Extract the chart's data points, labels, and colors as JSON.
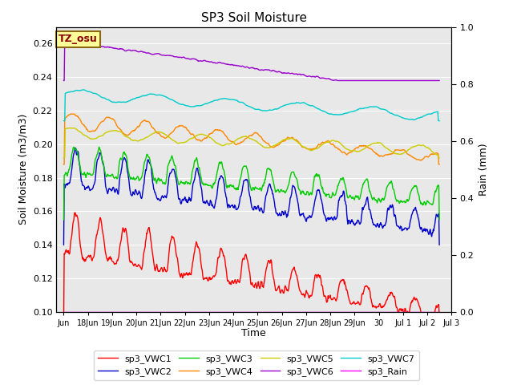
{
  "title": "SP3 Soil Moisture",
  "xlabel": "Time",
  "ylabel_left": "Soil Moisture (m3/m3)",
  "ylabel_right": "Rain (mm)",
  "annotation": "TZ_osu",
  "xlim_days": [
    -0.3,
    16.0
  ],
  "ylim_left": [
    0.1,
    0.27
  ],
  "ylim_right": [
    0.0,
    1.0
  ],
  "background_color": "#e8e8e8",
  "series": {
    "sp3_VWC1": {
      "color": "#ff0000",
      "lw": 1.0
    },
    "sp3_VWC2": {
      "color": "#0000cc",
      "lw": 1.0
    },
    "sp3_VWC3": {
      "color": "#00cc00",
      "lw": 1.0
    },
    "sp3_VWC4": {
      "color": "#ff8800",
      "lw": 1.0
    },
    "sp3_VWC5": {
      "color": "#cccc00",
      "lw": 1.0
    },
    "sp3_VWC6": {
      "color": "#9900cc",
      "lw": 1.0
    },
    "sp3_VWC7": {
      "color": "#00cccc",
      "lw": 1.0
    },
    "sp3_Rain": {
      "color": "#ff00ff",
      "lw": 1.0
    }
  },
  "xtick_labels": [
    "Jun",
    "18Jun",
    "19Jun",
    "20Jun",
    "21Jun",
    "22Jun",
    "23Jun",
    "24Jun",
    "25Jun",
    "26Jun",
    "27Jun",
    "28Jun",
    "29Jun",
    "30",
    "Jul 1",
    "Jul 2",
    "Jul 3"
  ],
  "xtick_positions": [
    0,
    1,
    2,
    3,
    4,
    5,
    6,
    7,
    8,
    9,
    10,
    11,
    12,
    13,
    14,
    15,
    16
  ],
  "ytick_left": [
    0.1,
    0.12,
    0.14,
    0.16,
    0.18,
    0.2,
    0.22,
    0.24,
    0.26
  ],
  "ytick_right": [
    0.0,
    0.2,
    0.4,
    0.6,
    0.8,
    1.0
  ],
  "legend_order": [
    "sp3_VWC1",
    "sp3_VWC2",
    "sp3_VWC3",
    "sp3_VWC4",
    "sp3_VWC5",
    "sp3_VWC6",
    "sp3_VWC7",
    "sp3_Rain"
  ],
  "legend_ncol": 4
}
